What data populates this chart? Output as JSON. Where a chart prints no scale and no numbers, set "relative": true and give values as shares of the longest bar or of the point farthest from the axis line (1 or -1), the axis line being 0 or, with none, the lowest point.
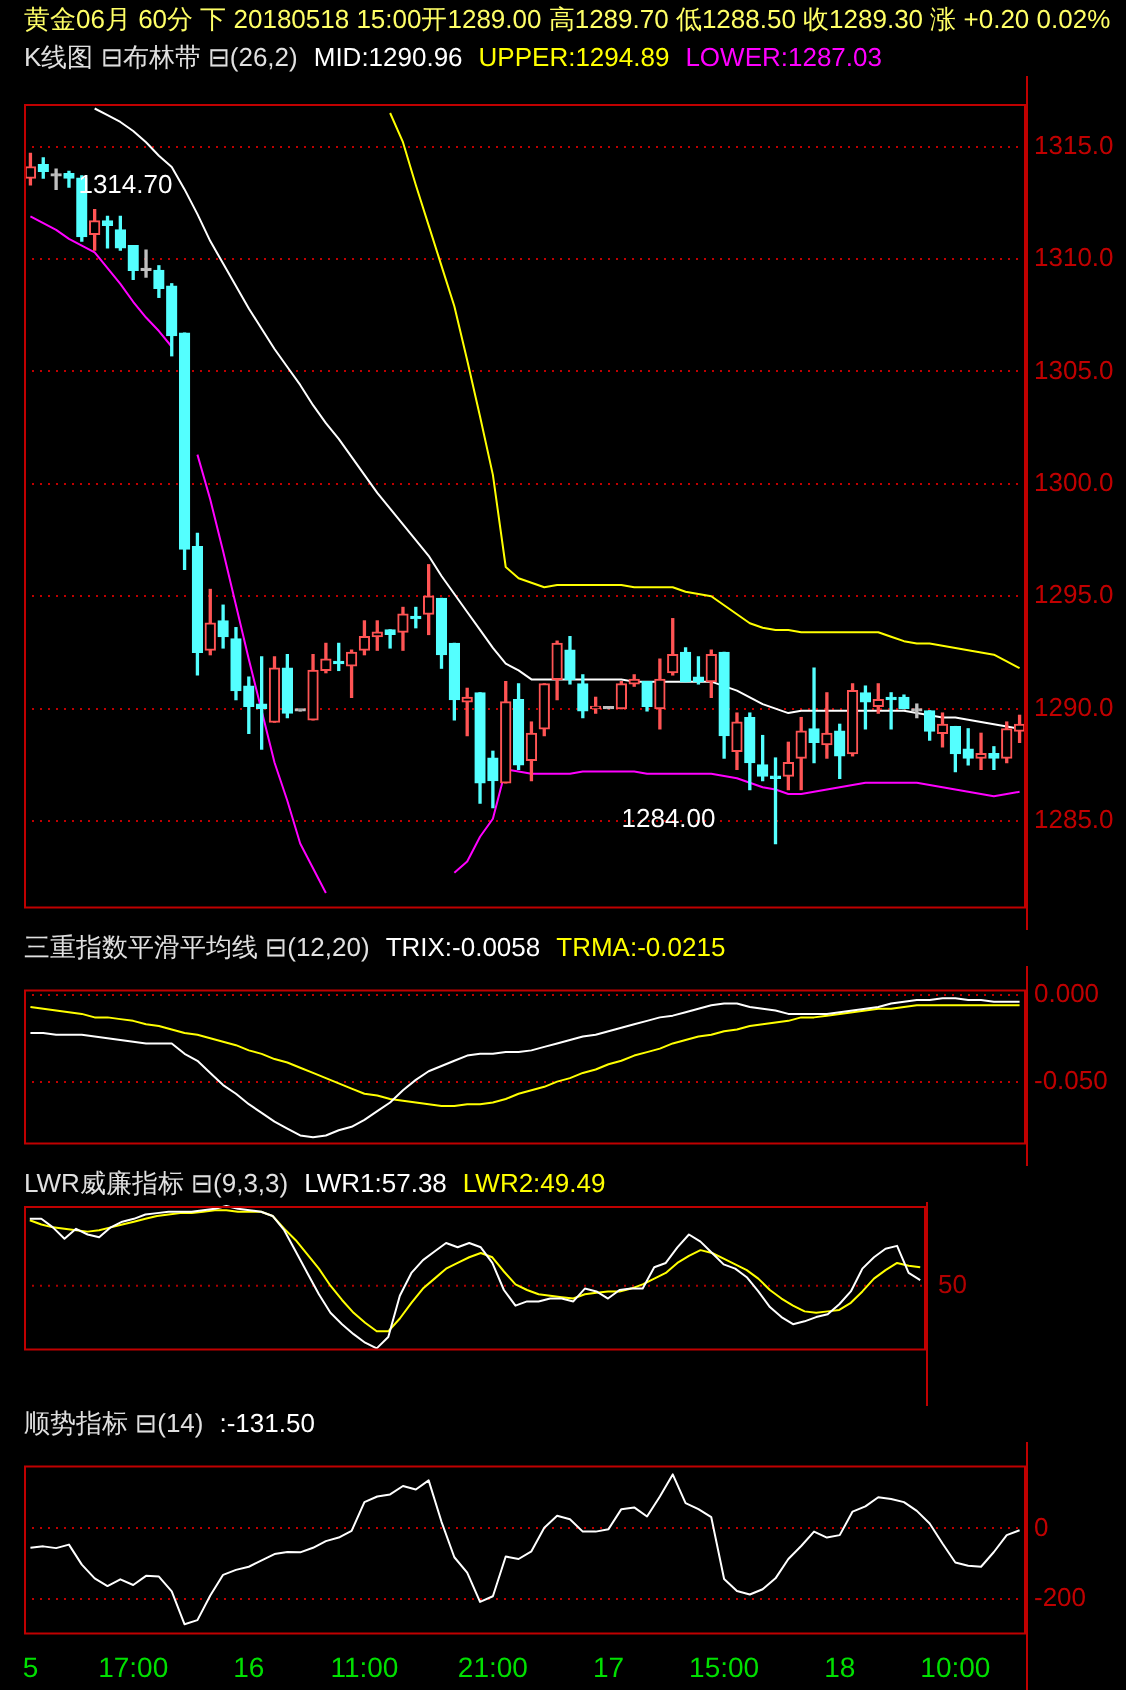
{
  "chart_data": [
    {
      "type": "candlestick",
      "title": "黄金06月 60分 下 20180518 15:00开1289.00 高1289.70 低1288.50 收1289.30 涨 +0.20 0.02%",
      "subtitle": "K线图 ⊟布林带 ⊟(26,2)",
      "categories": [
        null,
        null,
        null,
        null,
        null,
        null,
        null,
        null,
        null,
        null,
        null,
        null,
        null,
        null,
        null,
        null,
        null,
        null,
        null,
        null,
        null,
        null,
        null,
        null,
        null,
        null,
        null,
        null,
        null,
        null,
        null,
        null,
        null,
        null,
        null,
        null,
        null,
        null,
        null,
        null,
        null,
        null,
        null,
        null,
        null,
        null,
        null,
        null,
        null,
        null,
        null,
        null,
        null,
        null,
        null,
        null,
        null,
        null,
        null,
        null,
        null,
        null,
        null,
        null,
        null,
        null,
        null,
        null,
        null,
        null,
        null,
        null,
        null,
        null,
        null,
        null,
        null,
        null
      ],
      "ohlc": [
        [
          1313.6,
          1314.7,
          1313.3,
          1314.1
        ],
        [
          1314.2,
          1314.5,
          1313.6,
          1313.9
        ],
        [
          1313.7,
          1314.0,
          1313.1,
          1313.7
        ],
        [
          1313.8,
          1313.9,
          1313.2,
          1313.6
        ],
        [
          1313.6,
          1313.7,
          1310.8,
          1311.0
        ],
        [
          1311.1,
          1312.2,
          1310.4,
          1311.7
        ],
        [
          1311.7,
          1311.9,
          1310.5,
          1311.5
        ],
        [
          1311.3,
          1311.9,
          1310.4,
          1310.5
        ],
        [
          1310.6,
          1310.6,
          1309.1,
          1309.5
        ],
        [
          1309.5,
          1310.4,
          1309.2,
          1309.5
        ],
        [
          1309.5,
          1309.7,
          1308.3,
          1308.7
        ],
        [
          1308.8,
          1308.9,
          1305.7,
          1306.6
        ],
        [
          1306.7,
          1306.7,
          1296.2,
          1297.1
        ],
        [
          1297.2,
          1297.8,
          1291.5,
          1292.5
        ],
        [
          1292.6,
          1295.3,
          1292.4,
          1293.8
        ],
        [
          1293.9,
          1294.6,
          1292.7,
          1293.2
        ],
        [
          1293.1,
          1293.6,
          1290.4,
          1290.8
        ],
        [
          1291.0,
          1291.4,
          1288.9,
          1290.1
        ],
        [
          1290.2,
          1292.3,
          1288.2,
          1290.0
        ],
        [
          1289.4,
          1292.3,
          1289.4,
          1291.8
        ],
        [
          1291.8,
          1292.4,
          1289.6,
          1289.8
        ],
        [
          1289.9,
          1289.9,
          1289.9,
          1289.9
        ],
        [
          1289.5,
          1292.4,
          1289.5,
          1291.7
        ],
        [
          1291.7,
          1292.9,
          1291.6,
          1292.2
        ],
        [
          1292.1,
          1292.9,
          1291.7,
          1292.0
        ],
        [
          1291.9,
          1292.6,
          1290.5,
          1292.5
        ],
        [
          1292.6,
          1293.9,
          1292.4,
          1293.2
        ],
        [
          1293.2,
          1293.9,
          1292.6,
          1293.4
        ],
        [
          1293.5,
          1293.5,
          1292.7,
          1293.3
        ],
        [
          1293.4,
          1294.5,
          1292.6,
          1294.2
        ],
        [
          1294.1,
          1294.5,
          1293.6,
          1294.0
        ],
        [
          1294.2,
          1296.4,
          1293.3,
          1295.0
        ],
        [
          1294.9,
          1294.9,
          1291.8,
          1292.4
        ],
        [
          1292.9,
          1292.9,
          1289.5,
          1290.4
        ],
        [
          1290.3,
          1290.9,
          1288.8,
          1290.5
        ],
        [
          1290.7,
          1290.7,
          1285.8,
          1286.7
        ],
        [
          1287.8,
          1288.1,
          1285.6,
          1286.8
        ],
        [
          1286.7,
          1291.2,
          1286.7,
          1290.3
        ],
        [
          1290.4,
          1291.1,
          1287.3,
          1287.5
        ],
        [
          1287.7,
          1289.4,
          1286.8,
          1288.9
        ],
        [
          1289.1,
          1291.1,
          1288.8,
          1291.1
        ],
        [
          1291.3,
          1293.0,
          1290.4,
          1292.9
        ],
        [
          1292.6,
          1293.2,
          1291.1,
          1291.3
        ],
        [
          1291.1,
          1291.5,
          1289.6,
          1289.9
        ],
        [
          1290.0,
          1290.5,
          1289.8,
          1290.1
        ],
        [
          1290.0,
          1290.0,
          1290.0,
          1290.0
        ],
        [
          1290.0,
          1291.2,
          1290.0,
          1291.1
        ],
        [
          1291.1,
          1291.5,
          1291.0,
          1291.3
        ],
        [
          1291.2,
          1291.2,
          1289.9,
          1290.1
        ],
        [
          1290.0,
          1292.2,
          1289.1,
          1291.3
        ],
        [
          1291.6,
          1294.0,
          1291.5,
          1292.4
        ],
        [
          1292.5,
          1292.7,
          1291.2,
          1291.2
        ],
        [
          1291.4,
          1292.3,
          1291.1,
          1291.2
        ],
        [
          1291.2,
          1292.6,
          1290.5,
          1292.4
        ],
        [
          1292.5,
          1292.5,
          1287.8,
          1288.8
        ],
        [
          1288.1,
          1289.8,
          1287.3,
          1289.4
        ],
        [
          1289.6,
          1289.8,
          1286.4,
          1287.6
        ],
        [
          1287.5,
          1288.8,
          1286.8,
          1287.0
        ],
        [
          1287.0,
          1287.8,
          1284.0,
          1286.9
        ],
        [
          1287.0,
          1288.5,
          1286.4,
          1287.6
        ],
        [
          1287.8,
          1289.6,
          1286.4,
          1289.0
        ],
        [
          1289.1,
          1291.8,
          1287.6,
          1288.5
        ],
        [
          1288.4,
          1290.7,
          1287.8,
          1288.9
        ],
        [
          1289.0,
          1289.3,
          1286.9,
          1287.9
        ],
        [
          1288.0,
          1291.1,
          1287.9,
          1290.8
        ],
        [
          1290.7,
          1291.0,
          1289.1,
          1290.3
        ],
        [
          1290.1,
          1291.1,
          1289.8,
          1290.4
        ],
        [
          1290.5,
          1290.7,
          1289.1,
          1290.4
        ],
        [
          1290.5,
          1290.6,
          1290.0,
          1290.0
        ],
        [
          1289.9,
          1290.2,
          1289.6,
          1289.9
        ],
        [
          1289.9,
          1289.9,
          1288.6,
          1289.0
        ],
        [
          1288.9,
          1289.8,
          1288.3,
          1289.3
        ],
        [
          1289.2,
          1289.2,
          1287.2,
          1288.0
        ],
        [
          1288.2,
          1289.1,
          1287.5,
          1287.8
        ],
        [
          1287.8,
          1288.9,
          1287.3,
          1288.0
        ],
        [
          1288.0,
          1288.3,
          1287.3,
          1287.8
        ],
        [
          1287.8,
          1289.4,
          1287.6,
          1289.1
        ],
        [
          1289.0,
          1289.7,
          1288.5,
          1289.3
        ]
      ],
      "colors": [
        "#ff5454",
        "#54ffff",
        "#c0c0c0",
        "#54ffff",
        "#54ffff",
        "#ff5454",
        "#54ffff",
        "#54ffff",
        "#54ffff",
        "#c0c0c0",
        "#54ffff",
        "#54ffff",
        "#54ffff",
        "#54ffff",
        "#ff5454",
        "#54ffff",
        "#54ffff",
        "#54ffff",
        "#54ffff",
        "#ff5454",
        "#54ffff",
        "#c0c0c0",
        "#ff5454",
        "#ff5454",
        "#54ffff",
        "#ff5454",
        "#ff5454",
        "#ff5454",
        "#54ffff",
        "#ff5454",
        "#54ffff",
        "#ff5454",
        "#54ffff",
        "#54ffff",
        "#ff5454",
        "#54ffff",
        "#54ffff",
        "#ff5454",
        "#54ffff",
        "#ff5454",
        "#ff5454",
        "#ff5454",
        "#54ffff",
        "#54ffff",
        "#ff5454",
        "#c0c0c0",
        "#ff5454",
        "#ff5454",
        "#54ffff",
        "#ff5454",
        "#ff5454",
        "#54ffff",
        "#54ffff",
        "#ff5454",
        "#54ffff",
        "#ff5454",
        "#54ffff",
        "#54ffff",
        "#54ffff",
        "#ff5454",
        "#ff5454",
        "#54ffff",
        "#ff5454",
        "#54ffff",
        "#ff5454",
        "#54ffff",
        "#ff5454",
        "#54ffff",
        "#54ffff",
        "#c0c0c0",
        "#54ffff",
        "#ff5454",
        "#54ffff",
        "#54ffff",
        "#ff5454",
        "#54ffff",
        "#ff5454",
        "#ff5454"
      ],
      "series": [
        {
          "type": "line",
          "name": "MID:1290.96",
          "color": "#ffffff",
          "values": [
            null,
            null,
            null,
            null,
            null,
            1316.7,
            1316.4,
            1316.1,
            1315.7,
            1315.2,
            1314.6,
            1314.1,
            1313.1,
            1312.0,
            1310.8,
            1309.8,
            1308.8,
            1307.8,
            1306.9,
            1306.0,
            1305.2,
            1304.4,
            1303.5,
            1302.7,
            1302.0,
            1301.2,
            1300.4,
            1299.6,
            1298.9,
            1298.2,
            1297.5,
            1296.8,
            1295.9,
            1295.1,
            1294.3,
            1293.5,
            1292.7,
            1292.0,
            1291.7,
            1291.3,
            1291.3,
            1291.3,
            1291.3,
            1291.3,
            1291.3,
            1291.3,
            1291.3,
            1291.2,
            1291.2,
            1291.2,
            1291.2,
            1291.2,
            1291.2,
            1291.2,
            1291.0,
            1290.8,
            1290.5,
            1290.2,
            1290.0,
            1289.8,
            1289.9,
            1289.9,
            1289.9,
            1289.9,
            1289.9,
            1289.9,
            1289.9,
            1289.9,
            1289.9,
            1289.8,
            1289.7,
            1289.6,
            1289.6,
            1289.5,
            1289.4,
            1289.3,
            1289.2,
            1289.1
          ]
        },
        {
          "type": "line",
          "name": "UPPER:1294.89",
          "color": "#ffff00",
          "values": [
            null,
            null,
            null,
            null,
            null,
            null,
            null,
            null,
            null,
            null,
            null,
            null,
            null,
            null,
            null,
            null,
            null,
            null,
            null,
            null,
            null,
            null,
            null,
            null,
            null,
            null,
            null,
            null,
            1316.5,
            1315.2,
            1313.3,
            1311.5,
            1309.7,
            1307.9,
            1305.5,
            1303.0,
            1300.4,
            1296.3,
            1295.8,
            1295.6,
            1295.4,
            1295.5,
            1295.5,
            1295.5,
            1295.5,
            1295.5,
            1295.5,
            1295.4,
            1295.4,
            1295.4,
            1295.4,
            1295.2,
            1295.1,
            1295.0,
            1294.6,
            1294.2,
            1293.8,
            1293.6,
            1293.5,
            1293.5,
            1293.4,
            1293.4,
            1293.4,
            1293.4,
            1293.4,
            1293.4,
            1293.4,
            1293.2,
            1293.0,
            1292.9,
            1292.9,
            1292.8,
            1292.7,
            1292.6,
            1292.5,
            1292.4,
            1292.1,
            1291.8
          ]
        },
        {
          "type": "line",
          "name": "LOWER:1287.03",
          "color": "#ff00ff",
          "values": [
            1311.9,
            1311.6,
            1311.3,
            1310.9,
            1310.6,
            1310.3,
            1309.6,
            1308.9,
            1308.1,
            1307.4,
            1306.8,
            1306.1,
            null,
            1301.3,
            1299.3,
            1297.0,
            1294.6,
            1292.2,
            1289.9,
            1287.6,
            1285.9,
            1284.0,
            1282.9,
            1281.8,
            null,
            null,
            null,
            null,
            null,
            null,
            null,
            null,
            null,
            1282.7,
            1283.2,
            1284.3,
            1285.1,
            1287.3,
            1287.2,
            1287.1,
            1287.1,
            1287.1,
            1287.1,
            1287.2,
            1287.2,
            1287.2,
            1287.2,
            1287.2,
            1287.1,
            1287.1,
            1287.1,
            1287.1,
            1287.1,
            1287.1,
            1287.0,
            1286.9,
            1286.7,
            1286.5,
            1286.4,
            1286.2,
            1286.2,
            1286.3,
            1286.4,
            1286.5,
            1286.6,
            1286.7,
            1286.7,
            1286.7,
            1286.7,
            1286.7,
            1286.6,
            1286.5,
            1286.4,
            1286.3,
            1286.2,
            1286.1,
            1286.2,
            1286.3
          ]
        }
      ],
      "ylim": [
        1281.2,
        1316.9
      ],
      "yticks": [
        {
          "value": 1315,
          "label": "1315.0"
        },
        {
          "value": 1310,
          "label": "1310.0"
        },
        {
          "value": 1305,
          "label": "1305.0"
        },
        {
          "value": 1300,
          "label": "1300.0"
        },
        {
          "value": 1295,
          "label": "1295.0"
        },
        {
          "value": 1290,
          "label": "1290.0"
        },
        {
          "value": 1285,
          "label": "1285.0"
        }
      ],
      "grid": "y",
      "legend": "top",
      "tick_labels": "y",
      "annotations": [
        "1314.70",
        "1284.00"
      ]
    },
    {
      "type": "line",
      "title": "三重指数平滑平均线 ⊟(12,20)",
      "categories": [
        null,
        null,
        null,
        null,
        null,
        null,
        null,
        null,
        null,
        null,
        null,
        null,
        null,
        null,
        null,
        null,
        null,
        null,
        null,
        null,
        null,
        null,
        null,
        null,
        null,
        null,
        null,
        null,
        null,
        null,
        null,
        null,
        null,
        null,
        null,
        null,
        null,
        null,
        null,
        null,
        null,
        null,
        null,
        null,
        null,
        null,
        null,
        null,
        null,
        null,
        null,
        null,
        null,
        null,
        null,
        null,
        null,
        null,
        null,
        null,
        null,
        null,
        null,
        null,
        null,
        null,
        null,
        null,
        null,
        null,
        null,
        null,
        null,
        null,
        null,
        null,
        null,
        null
      ],
      "series": [
        {
          "name": "TRIX:-0.0058",
          "color": "#ffffff",
          "values": [
            -0.022,
            -0.022,
            -0.023,
            -0.023,
            -0.023,
            -0.024,
            -0.025,
            -0.026,
            -0.027,
            -0.028,
            -0.028,
            -0.028,
            -0.034,
            -0.038,
            -0.045,
            -0.052,
            -0.057,
            -0.063,
            -0.068,
            -0.073,
            -0.077,
            -0.081,
            -0.082,
            -0.081,
            -0.078,
            -0.076,
            -0.072,
            -0.067,
            -0.062,
            -0.055,
            -0.049,
            -0.044,
            -0.041,
            -0.038,
            -0.035,
            -0.034,
            -0.034,
            -0.033,
            -0.033,
            -0.032,
            -0.03,
            -0.028,
            -0.026,
            -0.024,
            -0.023,
            -0.021,
            -0.019,
            -0.017,
            -0.015,
            -0.013,
            -0.012,
            -0.01,
            -0.008,
            -0.006,
            -0.005,
            -0.005,
            -0.007,
            -0.008,
            -0.009,
            -0.011,
            -0.011,
            -0.011,
            -0.011,
            -0.01,
            -0.009,
            -0.008,
            -0.007,
            -0.005,
            -0.004,
            -0.003,
            -0.003,
            -0.002,
            -0.002,
            -0.003,
            -0.003,
            -0.004,
            -0.004,
            -0.004
          ]
        },
        {
          "name": "TRMA:-0.0215",
          "color": "#ffff00",
          "values": [
            -0.007,
            -0.008,
            -0.009,
            -0.01,
            -0.011,
            -0.013,
            -0.013,
            -0.014,
            -0.015,
            -0.017,
            -0.018,
            -0.02,
            -0.022,
            -0.023,
            -0.025,
            -0.027,
            -0.029,
            -0.032,
            -0.034,
            -0.037,
            -0.039,
            -0.042,
            -0.045,
            -0.048,
            -0.051,
            -0.054,
            -0.057,
            -0.058,
            -0.06,
            -0.061,
            -0.062,
            -0.063,
            -0.064,
            -0.064,
            -0.063,
            -0.063,
            -0.062,
            -0.06,
            -0.057,
            -0.055,
            -0.053,
            -0.05,
            -0.048,
            -0.045,
            -0.043,
            -0.04,
            -0.038,
            -0.035,
            -0.033,
            -0.031,
            -0.028,
            -0.026,
            -0.024,
            -0.023,
            -0.021,
            -0.02,
            -0.018,
            -0.017,
            -0.016,
            -0.015,
            -0.013,
            -0.013,
            -0.012,
            -0.011,
            -0.01,
            -0.009,
            -0.008,
            -0.008,
            -0.007,
            -0.006,
            -0.006,
            -0.006,
            -0.006,
            -0.006,
            -0.006,
            -0.006,
            -0.006,
            -0.006
          ]
        }
      ],
      "ylim": [
        -0.085,
        0.003
      ],
      "yticks": [
        {
          "value": 0,
          "label": "0.000"
        },
        {
          "value": -0.05,
          "label": "-0.050"
        }
      ],
      "grid": "y",
      "legend": "top",
      "tick_labels": "y"
    },
    {
      "type": "line",
      "title": "LWR威廉指标 ⊟(9,3,3)",
      "relative": true,
      "categories": [
        null,
        null,
        null,
        null,
        null,
        null,
        null,
        null,
        null,
        null,
        null,
        null,
        null,
        null,
        null,
        null,
        null,
        null,
        null,
        null,
        null,
        null,
        null,
        null,
        null,
        null,
        null,
        null,
        null,
        null,
        null,
        null,
        null,
        null,
        null,
        null,
        null,
        null,
        null,
        null,
        null,
        null,
        null,
        null,
        null,
        null,
        null,
        null,
        null,
        null,
        null,
        null,
        null,
        null,
        null,
        null,
        null,
        null,
        null,
        null,
        null,
        null,
        null,
        null,
        null,
        null,
        null,
        null,
        null,
        null,
        null,
        null,
        null,
        null,
        null,
        null,
        null,
        null
      ],
      "series": [
        {
          "name": "LWR1:57.38",
          "color": "#ffffff",
          "values": [
            0.91,
            0.91,
            0.85,
            0.77,
            0.84,
            0.8,
            0.78,
            0.85,
            0.89,
            0.91,
            0.94,
            0.95,
            0.96,
            0.96,
            0.96,
            0.97,
            0.98,
            1.0,
            0.98,
            0.97,
            0.96,
            0.93,
            0.83,
            0.68,
            0.53,
            0.38,
            0.25,
            0.17,
            0.1,
            0.04,
            0.0,
            0.08,
            0.37,
            0.53,
            0.62,
            0.68,
            0.74,
            0.71,
            0.74,
            0.71,
            0.6,
            0.41,
            0.3,
            0.33,
            0.33,
            0.35,
            0.35,
            0.33,
            0.42,
            0.4,
            0.35,
            0.41,
            0.42,
            0.42,
            0.57,
            0.6,
            0.71,
            0.8,
            0.75,
            0.67,
            0.59,
            0.56,
            0.5,
            0.4,
            0.29,
            0.22,
            0.17,
            0.19,
            0.22,
            0.24,
            0.31,
            0.4,
            0.56,
            0.64,
            0.7,
            0.72,
            0.53,
            0.48
          ]
        },
        {
          "name": "LWR2:49.49",
          "color": "#ffff00",
          "values": [
            0.9,
            0.87,
            0.85,
            0.84,
            0.83,
            0.82,
            0.83,
            0.85,
            0.87,
            0.89,
            0.91,
            0.93,
            0.94,
            0.95,
            0.95,
            0.96,
            0.97,
            0.97,
            0.96,
            0.96,
            0.96,
            0.93,
            0.84,
            0.76,
            0.66,
            0.56,
            0.44,
            0.34,
            0.25,
            0.18,
            0.12,
            0.12,
            0.21,
            0.32,
            0.42,
            0.49,
            0.56,
            0.6,
            0.64,
            0.67,
            0.64,
            0.54,
            0.45,
            0.41,
            0.38,
            0.37,
            0.36,
            0.35,
            0.38,
            0.39,
            0.4,
            0.4,
            0.42,
            0.45,
            0.49,
            0.53,
            0.6,
            0.65,
            0.69,
            0.67,
            0.63,
            0.59,
            0.55,
            0.49,
            0.41,
            0.35,
            0.3,
            0.26,
            0.25,
            0.26,
            0.27,
            0.32,
            0.4,
            0.49,
            0.55,
            0.6,
            0.58,
            0.57
          ]
        }
      ],
      "ref_lines": [
        {
          "axis": "y",
          "value": 0.44,
          "color": "#b00000",
          "line_style": "dotted"
        }
      ],
      "annotations": [
        "50"
      ],
      "legend": "top"
    },
    {
      "type": "line",
      "title": "顺势指标 ⊟(14)",
      "categories": [
        "5",
        null,
        null,
        null,
        null,
        null,
        null,
        null,
        "17:00",
        null,
        null,
        null,
        null,
        null,
        null,
        null,
        null,
        "16",
        null,
        null,
        null,
        null,
        null,
        null,
        null,
        null,
        "11:00",
        null,
        null,
        null,
        null,
        null,
        null,
        null,
        null,
        null,
        "21:00",
        null,
        null,
        null,
        null,
        null,
        null,
        null,
        null,
        "17",
        null,
        null,
        null,
        null,
        null,
        null,
        null,
        null,
        "15:00",
        null,
        null,
        null,
        null,
        null,
        null,
        null,
        null,
        "18",
        null,
        null,
        null,
        null,
        null,
        null,
        null,
        null,
        "10:00",
        null,
        null,
        null,
        null,
        null
      ],
      "series": [
        {
          "name": ":-131.50",
          "color": "#ffffff",
          "values": [
            -55,
            -51,
            -56,
            -46,
            -103,
            -142,
            -164,
            -145,
            -161,
            -135,
            -137,
            -179,
            -273,
            -261,
            -191,
            -132,
            -118,
            -109,
            -91,
            -73,
            -67,
            -68,
            -55,
            -36,
            -26,
            -7,
            75,
            91,
            97,
            121,
            111,
            137,
            19,
            -82,
            -126,
            -209,
            -193,
            -80,
            -87,
            -65,
            2,
            36,
            26,
            -9,
            -9,
            -2,
            55,
            60,
            34,
            91,
            154,
            72,
            55,
            32,
            -144,
            -178,
            -188,
            -173,
            -142,
            -87,
            -50,
            -9,
            -26,
            -19,
            48,
            63,
            89,
            84,
            75,
            50,
            14,
            -43,
            -97,
            -106,
            -109,
            -67,
            -19,
            -5
          ]
        }
      ],
      "ylim": [
        -296,
        179
      ],
      "yticks": [
        0,
        -200
      ],
      "grid": "y",
      "legend": "top"
    }
  ]
}
